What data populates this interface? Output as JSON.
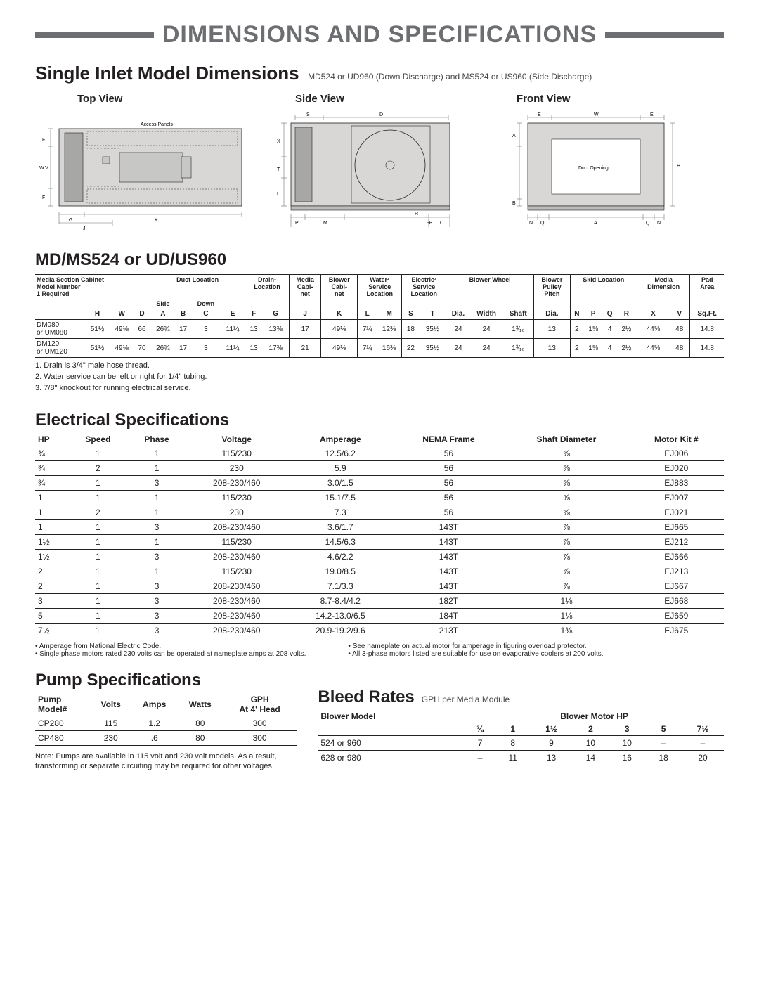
{
  "page_title": "DIMENSIONS AND SPECIFICATIONS",
  "main_section": {
    "heading": "Single Inlet Model Dimensions",
    "subtext": "MD524 or UD960 (Down Discharge) and MS524 or US960 (Side Discharge)"
  },
  "views": {
    "top": "Top View",
    "side": "Side View",
    "front": "Front View",
    "access_panels": "Access Panels",
    "duct_opening": "Duct Opening"
  },
  "dim_heading": "MD/MS524 or UD/US960",
  "dim_table": {
    "group_headers": [
      {
        "label": "Media Section Cabinet\nModel Number\n1 Required",
        "span": 4,
        "vl": false,
        "align": "left"
      },
      {
        "label": "Duct Location",
        "span": 4,
        "vl": true
      },
      {
        "label": "Drain¹\nLocation",
        "span": 2,
        "vl": true
      },
      {
        "label": "Media\nCabi-\nnet",
        "span": 1,
        "vl": true
      },
      {
        "label": "Blower\nCabi-\nnet",
        "span": 1,
        "vl": true
      },
      {
        "label": "Water²\nService\nLocation",
        "span": 2,
        "vl": true
      },
      {
        "label": "Electric³\nService\nLocation",
        "span": 2,
        "vl": true
      },
      {
        "label": "Blower Wheel",
        "span": 3,
        "vl": true
      },
      {
        "label": "Blower\nPulley\nPitch",
        "span": 1,
        "vl": true
      },
      {
        "label": "Skid Location",
        "span": 4,
        "vl": true
      },
      {
        "label": "Media\nDimension",
        "span": 2,
        "vl": true
      },
      {
        "label": "Pad\nArea",
        "span": 1,
        "vl": true
      }
    ],
    "mid_headers": [
      "",
      "",
      "",
      "",
      "Side",
      "",
      "Down",
      "",
      "",
      "",
      "",
      "",
      "",
      "",
      "",
      "",
      "",
      "",
      "",
      "",
      "",
      "",
      "",
      "",
      "",
      "",
      ""
    ],
    "col_headers": [
      "",
      "H",
      "W",
      "D",
      "A",
      "B",
      "C",
      "E",
      "F",
      "G",
      "J",
      "K",
      "L",
      "M",
      "S",
      "T",
      "Dia.",
      "Width",
      "Shaft",
      "Dia.",
      "N",
      "P",
      "Q",
      "R",
      "X",
      "V",
      "Sq.Ft."
    ],
    "vl_cols": [
      4,
      8,
      10,
      11,
      12,
      14,
      16,
      19,
      20,
      24,
      26
    ],
    "rows": [
      {
        "label": "DM080\nor UM080",
        "cells": [
          "51½",
          "49⅛",
          "66",
          "26¾",
          "17",
          "3",
          "11¼",
          "13",
          "13⅜",
          "17",
          "49⅛",
          "7¼",
          "12⅜",
          "18",
          "35½",
          "24",
          "24",
          "1³⁄₁₆",
          "13",
          "2",
          "1⅝",
          "4",
          "2½",
          "44⅝",
          "48",
          "14.8"
        ]
      },
      {
        "label": "DM120\nor UM120",
        "cells": [
          "51½",
          "49⅛",
          "70",
          "26¾",
          "17",
          "3",
          "11¼",
          "13",
          "17⅜",
          "21",
          "49⅛",
          "7¼",
          "16⅜",
          "22",
          "35½",
          "24",
          "24",
          "1³⁄₁₆",
          "13",
          "2",
          "1⅝",
          "4",
          "2½",
          "44⅝",
          "48",
          "14.8"
        ]
      }
    ]
  },
  "dim_footnotes": [
    "1.  Drain is 3/4\" male hose thread.",
    "2.  Water service can be left or right for 1/4\" tubing.",
    "3.  7/8\" knockout for running electrical service."
  ],
  "elec_heading": "Electrical Specifications",
  "elec_table": {
    "columns": [
      "HP",
      "Speed",
      "Phase",
      "Voltage",
      "Amperage",
      "NEMA Frame",
      "Shaft Diameter",
      "Motor Kit #"
    ],
    "rows": [
      [
        "¾",
        "1",
        "1",
        "115/230",
        "12.5/6.2",
        "56",
        "⅝",
        "EJ006"
      ],
      [
        "¾",
        "2",
        "1",
        "230",
        "5.9",
        "56",
        "⅝",
        "EJ020"
      ],
      [
        "¾",
        "1",
        "3",
        "208-230/460",
        "3.0/1.5",
        "56",
        "⅝",
        "EJ883"
      ],
      [
        "1",
        "1",
        "1",
        "115/230",
        "15.1/7.5",
        "56",
        "⅝",
        "EJ007"
      ],
      [
        "1",
        "2",
        "1",
        "230",
        "7.3",
        "56",
        "⅝",
        "EJ021"
      ],
      [
        "1",
        "1",
        "3",
        "208-230/460",
        "3.6/1.7",
        "143T",
        "⅞",
        "EJ665"
      ],
      [
        "1½",
        "1",
        "1",
        "115/230",
        "14.5/6.3",
        "143T",
        "⅞",
        "EJ212"
      ],
      [
        "1½",
        "1",
        "3",
        "208-230/460",
        "4.6/2.2",
        "143T",
        "⅞",
        "EJ666"
      ],
      [
        "2",
        "1",
        "1",
        "115/230",
        "19.0/8.5",
        "143T",
        "⅞",
        "EJ213"
      ],
      [
        "2",
        "1",
        "3",
        "208-230/460",
        "7.1/3.3",
        "143T",
        "⅞",
        "EJ667"
      ],
      [
        "3",
        "1",
        "3",
        "208-230/460",
        "8.7-8.4/4.2",
        "182T",
        "1⅛",
        "EJ668"
      ],
      [
        "5",
        "1",
        "3",
        "208-230/460",
        "14.2-13.0/6.5",
        "184T",
        "1⅛",
        "EJ659"
      ],
      [
        "7½",
        "1",
        "3",
        "208-230/460",
        "20.9-19.2/9.6",
        "213T",
        "1⅜",
        "EJ675"
      ]
    ]
  },
  "elec_bullets_left": [
    "Amperage from National Electric Code.",
    "Single phase motors rated 230 volts can be operated at nameplate amps at 208 volts."
  ],
  "elec_bullets_right": [
    "See nameplate on actual motor for amperage in figuring overload protector.",
    "All 3-phase motors listed are suitable for use on evaporative coolers at 200 volts."
  ],
  "pump_heading": "Pump Specifications",
  "pump_table": {
    "columns": [
      "Pump\nModel#",
      "Volts",
      "Amps",
      "Watts",
      "GPH\nAt 4' Head"
    ],
    "rows": [
      [
        "CP280",
        "115",
        "1.2",
        "80",
        "300"
      ],
      [
        "CP480",
        "230",
        ".6",
        "80",
        "300"
      ]
    ]
  },
  "pump_note": "Note: Pumps are available in 115 volt and 230 volt models. As a result, transforming or separate circuiting may be required for other voltages.",
  "bleed_heading": "Bleed Rates",
  "bleed_sub": "GPH per Media Module",
  "bleed_table": {
    "left_header": "Blower Model",
    "right_header": "Blower Motor HP",
    "hp_cols": [
      "¾",
      "1",
      "1½",
      "2",
      "3",
      "5",
      "7½"
    ],
    "rows": [
      [
        "524 or 960",
        "7",
        "8",
        "9",
        "10",
        "10",
        "–",
        "–"
      ],
      [
        "628 or 980",
        "–",
        "11",
        "13",
        "14",
        "16",
        "18",
        "20"
      ]
    ]
  },
  "colors": {
    "rule": "#6d6e71",
    "title": "#6d6e71",
    "text": "#231f20",
    "fill": "#d8d7d5"
  }
}
